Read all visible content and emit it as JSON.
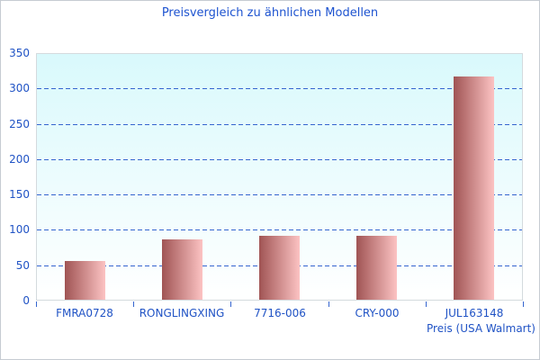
{
  "chart_data": {
    "type": "bar",
    "title": "Preisvergleich zu ähnlichen Modellen",
    "categories": [
      "FMRA0728",
      "RONGLINGXING",
      "7716-006",
      "CRY-000",
      "JUL163148"
    ],
    "values": [
      55,
      85,
      90,
      90,
      315
    ],
    "xlabel": "Preis (USA Walmart)",
    "ylabel": "",
    "ylim": [
      0,
      350
    ],
    "yticks": [
      0,
      50,
      100,
      150,
      200,
      250,
      300,
      350
    ],
    "grid": "horizontal dashed lines at 50-unit steps, none at 0 and 350",
    "legend_position": "none",
    "bar_style": "horizontal gradient dark red to light pink"
  },
  "colors": {
    "title_blue": "#1d53d0",
    "text_blue": "#2053c5",
    "grid_blue": "#3565cf",
    "bar_gradient_left": "#a05454",
    "bar_gradient_right": "#fcc3c3",
    "plot_bg_top": "#d9f9fc",
    "plot_bg_bottom": "#ffffff",
    "plot_border": "#d4dade",
    "frame_border": "#c6cbd2"
  }
}
